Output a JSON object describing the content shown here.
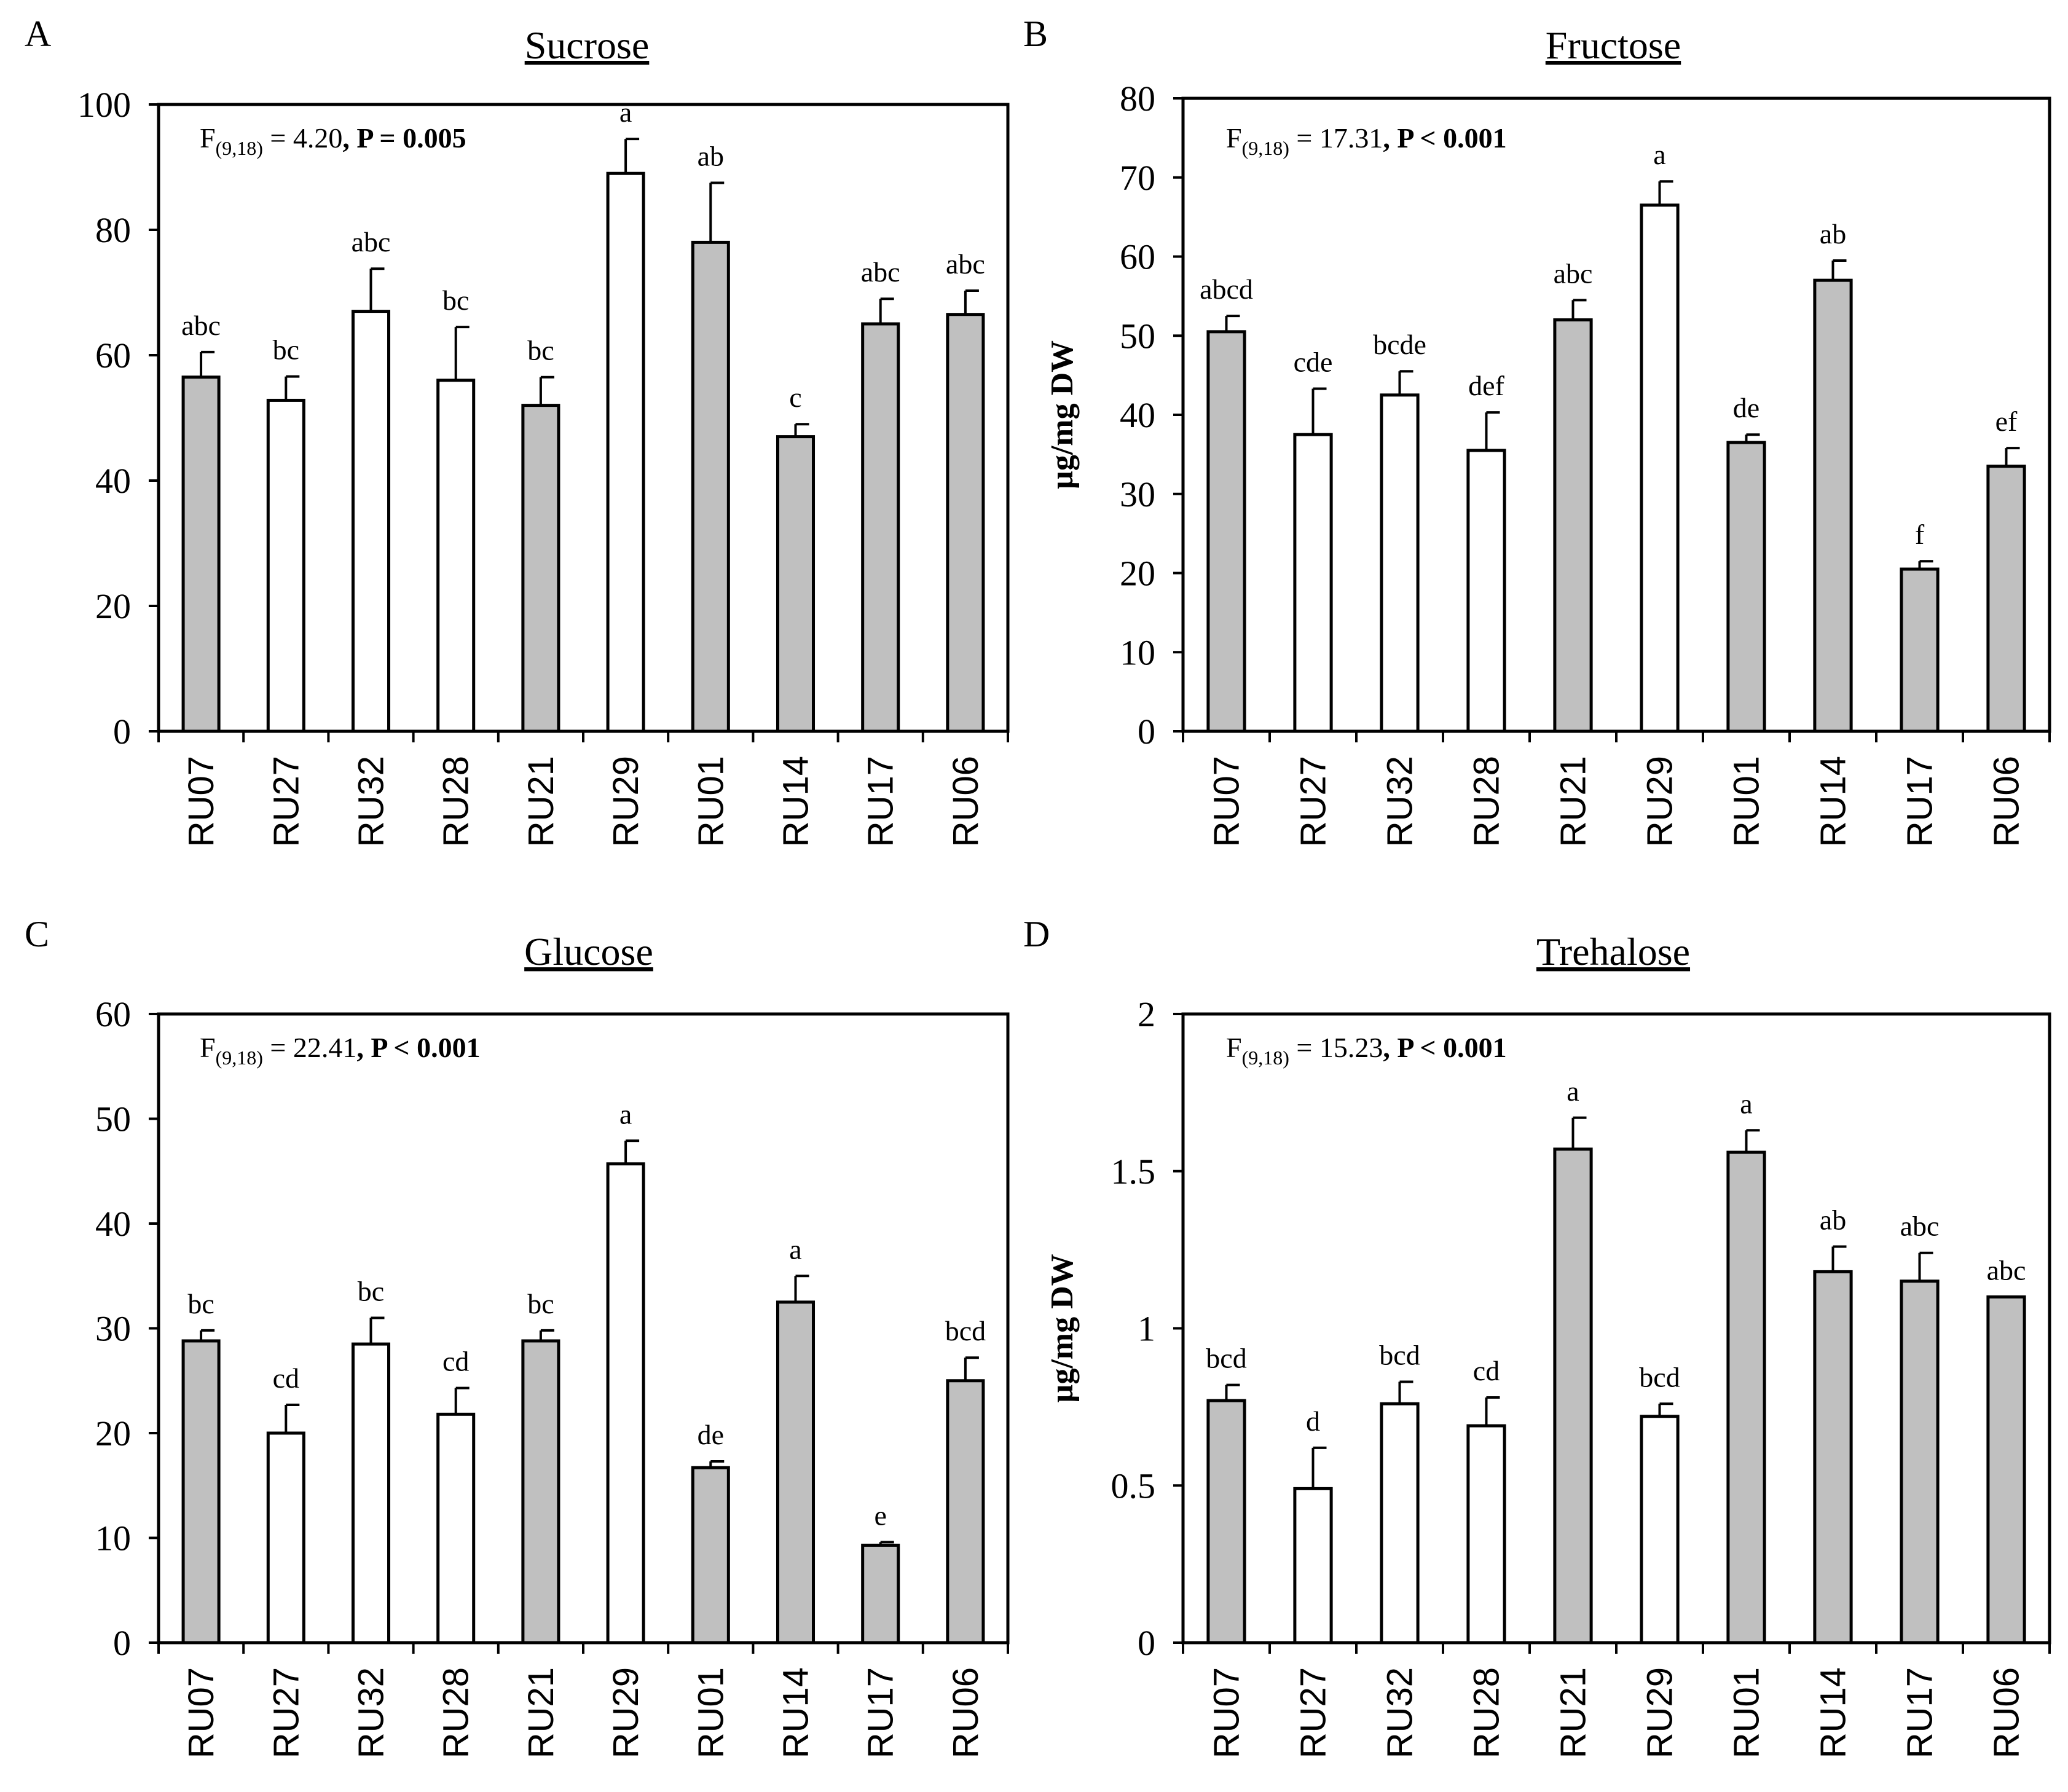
{
  "figure": {
    "ylabel_unit": "µg/mg DW"
  },
  "chart_data": [
    {
      "type": "bar",
      "panel": "A",
      "title": "Sucrose",
      "xlabel": "",
      "ylabel": "",
      "ylim": [
        0,
        100
      ],
      "yticks": [
        0,
        20,
        40,
        60,
        80,
        100
      ],
      "categories": [
        "RU07",
        "RU27",
        "RU32",
        "RU28",
        "RU21",
        "RU29",
        "RU01",
        "RU14",
        "RU17",
        "RU06"
      ],
      "values": [
        56.5,
        52.8,
        67.0,
        56.0,
        52.0,
        89.0,
        78.0,
        47.0,
        65.0,
        66.5
      ],
      "errors": [
        4.0,
        3.8,
        6.8,
        8.5,
        4.5,
        5.5,
        9.5,
        2.0,
        4.0,
        3.8
      ],
      "colors": [
        "#c0c0c0",
        "#ffffff",
        "#ffffff",
        "#ffffff",
        "#c0c0c0",
        "#ffffff",
        "#c0c0c0",
        "#c0c0c0",
        "#c0c0c0",
        "#c0c0c0"
      ],
      "significance": [
        "abc",
        "bc",
        "abc",
        "bc",
        "bc",
        "a",
        "ab",
        "c",
        "abc",
        "abc"
      ],
      "stat": {
        "prefix": "F",
        "subscript": "(9,18)",
        "eq": " = 4.20",
        "bold": ", P = 0.005"
      }
    },
    {
      "type": "bar",
      "panel": "B",
      "title": "Fructose",
      "xlabel": "",
      "ylabel": "µg/mg DW",
      "ylim": [
        0,
        80
      ],
      "yticks": [
        0,
        10,
        20,
        30,
        40,
        50,
        60,
        70,
        80
      ],
      "categories": [
        "RU07",
        "RU27",
        "RU32",
        "RU28",
        "RU21",
        "RU29",
        "RU01",
        "RU14",
        "RU17",
        "RU06"
      ],
      "values": [
        50.5,
        37.5,
        42.5,
        35.5,
        52.0,
        66.5,
        36.5,
        57.0,
        20.5,
        33.5
      ],
      "errors": [
        2.0,
        5.8,
        3.0,
        4.8,
        2.5,
        3.0,
        1.0,
        2.5,
        1.0,
        2.3
      ],
      "colors": [
        "#c0c0c0",
        "#ffffff",
        "#ffffff",
        "#ffffff",
        "#c0c0c0",
        "#ffffff",
        "#c0c0c0",
        "#c0c0c0",
        "#c0c0c0",
        "#c0c0c0"
      ],
      "significance": [
        "abcd",
        "cde",
        "bcde",
        "def",
        "abc",
        "a",
        "de",
        "ab",
        "f",
        "ef"
      ],
      "stat": {
        "prefix": "F",
        "subscript": "(9,18)",
        "eq": " = 17.31",
        "bold": ", P < 0.001"
      }
    },
    {
      "type": "bar",
      "panel": "C",
      "title": "Glucose",
      "xlabel": "",
      "ylabel": "",
      "ylim": [
        0,
        60
      ],
      "yticks": [
        0,
        10,
        20,
        30,
        40,
        50,
        60
      ],
      "categories": [
        "RU07",
        "RU27",
        "RU32",
        "RU28",
        "RU21",
        "RU29",
        "RU01",
        "RU14",
        "RU17",
        "RU06"
      ],
      "values": [
        28.8,
        20.0,
        28.5,
        21.8,
        28.8,
        45.7,
        16.7,
        32.5,
        9.3,
        25.0
      ],
      "errors": [
        1.0,
        2.7,
        2.5,
        2.5,
        1.0,
        2.2,
        0.6,
        2.5,
        0.3,
        2.2
      ],
      "colors": [
        "#c0c0c0",
        "#ffffff",
        "#ffffff",
        "#ffffff",
        "#c0c0c0",
        "#ffffff",
        "#c0c0c0",
        "#c0c0c0",
        "#c0c0c0",
        "#c0c0c0"
      ],
      "significance": [
        "bc",
        "cd",
        "bc",
        "cd",
        "bc",
        "a",
        "de",
        "a",
        "e",
        "bcd"
      ],
      "stat": {
        "prefix": "F",
        "subscript": "(9,18)",
        "eq": " = 22.41",
        "bold": ", P < 0.001"
      }
    },
    {
      "type": "bar",
      "panel": "D",
      "title": "Trehalose",
      "xlabel": "",
      "ylabel": "µg/mg DW",
      "ylim": [
        0,
        2
      ],
      "yticks": [
        0,
        0.5,
        1,
        1.5,
        2
      ],
      "ytick_labels": [
        "0",
        "0.5",
        "1",
        "1.5",
        "2"
      ],
      "categories": [
        "RU07",
        "RU27",
        "RU32",
        "RU28",
        "RU21",
        "RU29",
        "RU01",
        "RU14",
        "RU17",
        "RU06"
      ],
      "values": [
        0.77,
        0.49,
        0.76,
        0.69,
        1.57,
        0.72,
        1.56,
        1.18,
        1.15,
        1.1
      ],
      "errors": [
        0.05,
        0.13,
        0.07,
        0.09,
        0.1,
        0.04,
        0.07,
        0.08,
        0.09,
        0.0
      ],
      "colors": [
        "#c0c0c0",
        "#ffffff",
        "#ffffff",
        "#ffffff",
        "#c0c0c0",
        "#ffffff",
        "#c0c0c0",
        "#c0c0c0",
        "#c0c0c0",
        "#c0c0c0"
      ],
      "significance": [
        "bcd",
        "d",
        "bcd",
        "cd",
        "a",
        "bcd",
        "a",
        "ab",
        "abc",
        "abc"
      ],
      "stat": {
        "prefix": "F",
        "subscript": "(9,18)",
        "eq": " = 15.23",
        "bold": ", P < 0.001"
      }
    }
  ]
}
